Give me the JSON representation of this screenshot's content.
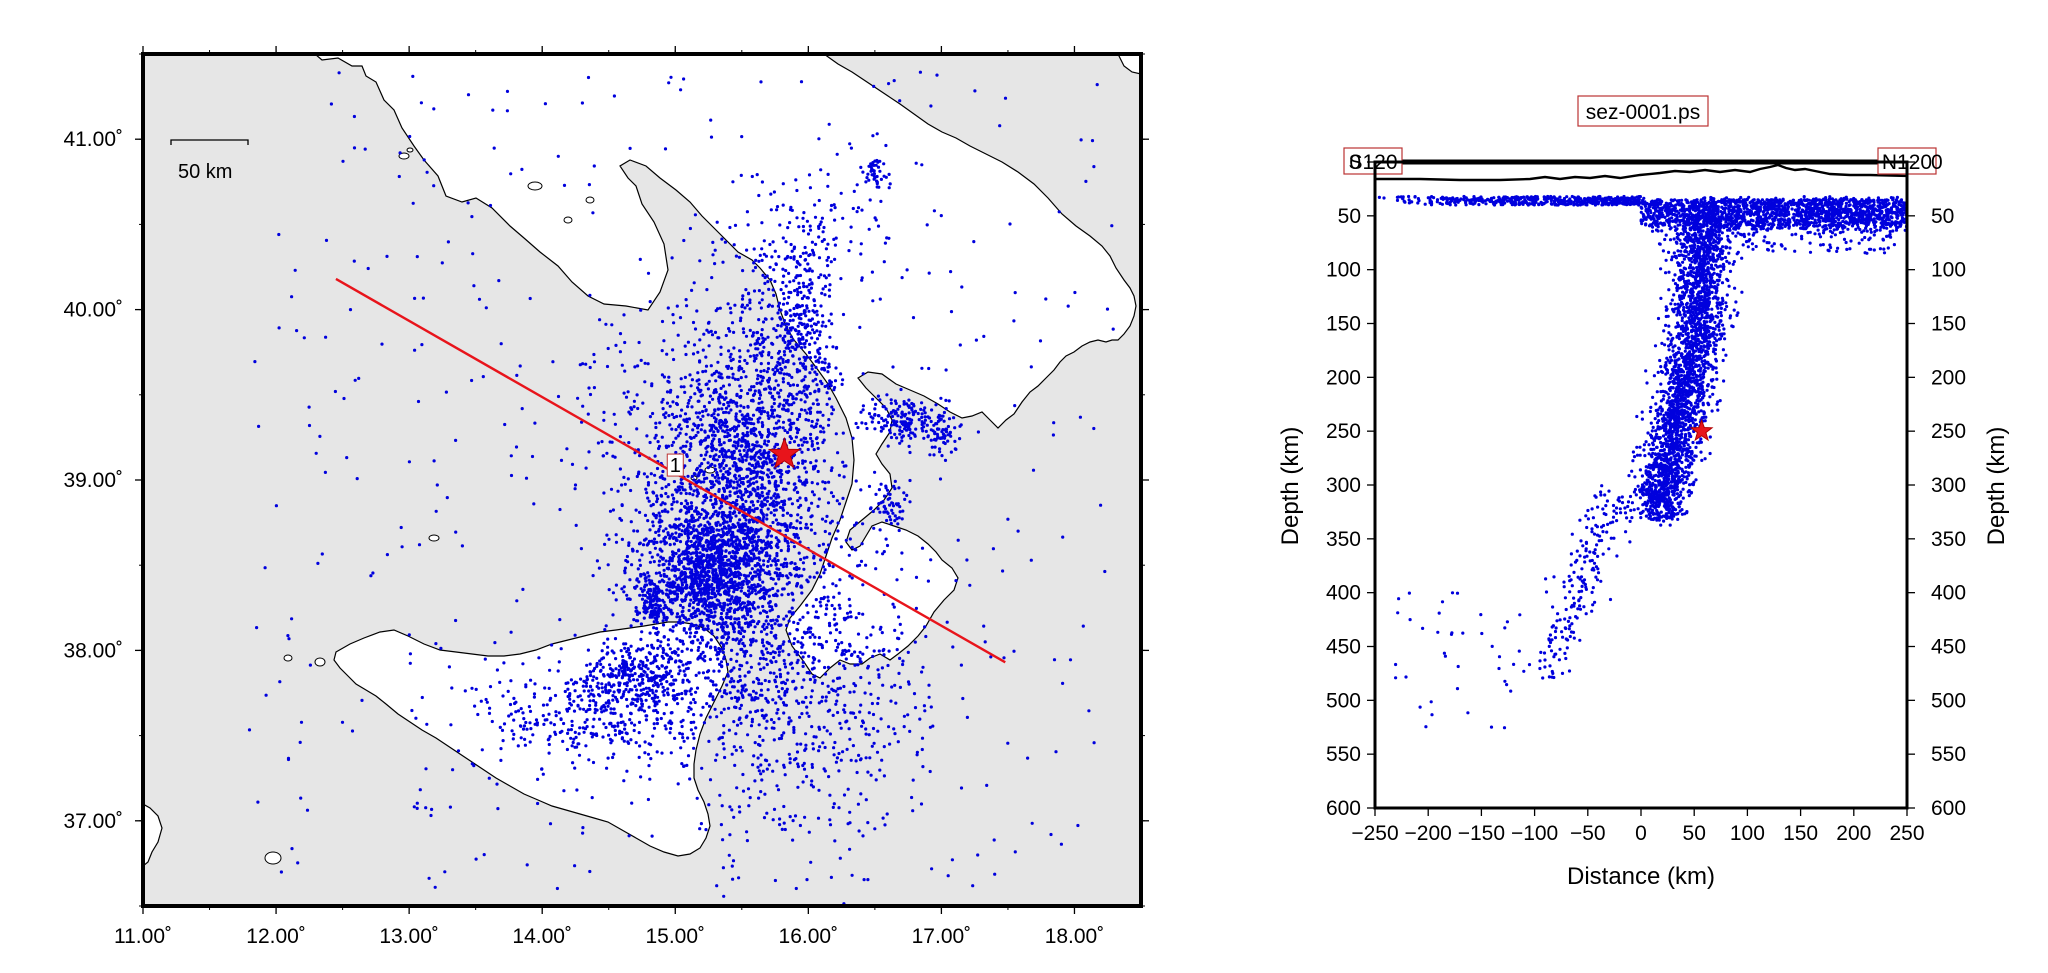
{
  "map": {
    "scale_bar_label": "50 km",
    "section_label": "1",
    "lon_ticks": [
      "11.00˚",
      "12.00˚",
      "13.00˚",
      "14.00˚",
      "15.00˚",
      "16.00˚",
      "17.00˚",
      "18.00˚"
    ],
    "lat_ticks": [
      "37.00˚",
      "38.00˚",
      "39.00˚",
      "40.00˚",
      "41.00˚"
    ],
    "extent": {
      "lon_min": 11.0,
      "lon_max": 18.5,
      "lat_min": 36.5,
      "lat_max": 41.5
    },
    "section_line": {
      "start": [
        12.45,
        40.18
      ],
      "end": [
        17.48,
        37.93
      ]
    },
    "epicenter": [
      15.82,
      39.15
    ],
    "colors": {
      "land": "#ffffff",
      "sea": "#e6e6e6",
      "events": "#0000dd",
      "section": "#e8141b",
      "star": "#e8141b"
    }
  },
  "section": {
    "title": "sez-0001.ps",
    "left_label": "S120",
    "right_label": "N120",
    "xlabel": "Distance (km)",
    "ylabel_left": "Depth (km)",
    "ylabel_right": "Depth (km)",
    "x_ticks": [
      "−250",
      "−200",
      "−150",
      "−100",
      "−50",
      "0",
      "50",
      "100",
      "150",
      "200",
      "250"
    ],
    "y_ticks": [
      "0",
      "50",
      "100",
      "150",
      "200",
      "250",
      "300",
      "350",
      "400",
      "450",
      "500",
      "550",
      "600"
    ],
    "xlim": [
      -250,
      250
    ],
    "ylim": [
      0,
      600
    ],
    "hypocenter": [
      57,
      250
    ]
  }
}
